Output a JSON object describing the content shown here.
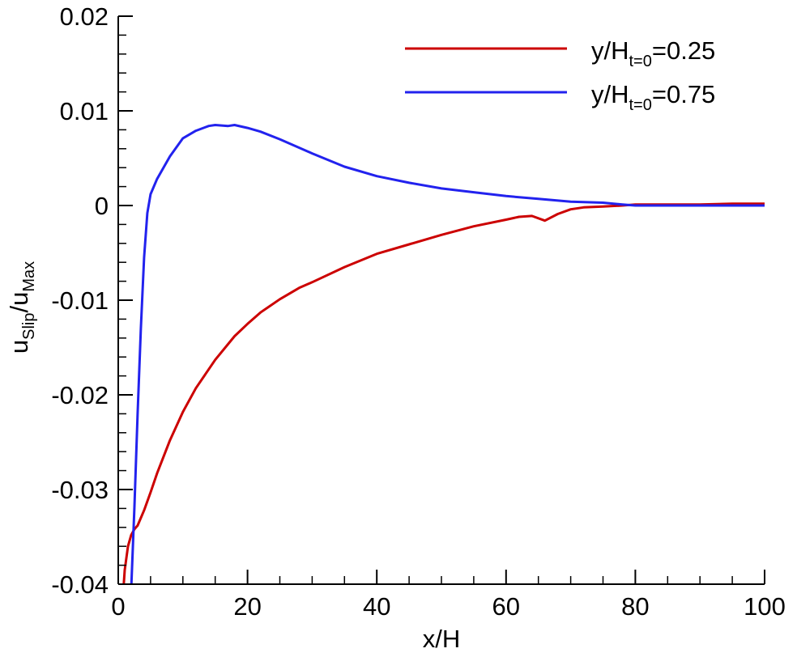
{
  "chart_data": {
    "type": "line",
    "title": "",
    "xlabel": "x/H",
    "ylabel": {
      "main1": "u",
      "sub1": "Slip",
      "main2": "/u",
      "sub2": "Max"
    },
    "xlim": [
      0,
      100
    ],
    "ylim": [
      -0.04,
      0.02
    ],
    "x_ticks": [
      0,
      20,
      40,
      60,
      80,
      100
    ],
    "x_tick_labels": [
      "0",
      "20",
      "40",
      "60",
      "80",
      "100"
    ],
    "y_ticks": [
      -0.04,
      -0.03,
      -0.02,
      -0.01,
      0,
      0.01,
      0.02
    ],
    "y_tick_labels": [
      "-0.04",
      "-0.03",
      "-0.02",
      "-0.01",
      "0",
      "0.01",
      "0.02"
    ],
    "grid": false,
    "legend_position": "top-right",
    "series": [
      {
        "name": "y/H t=0 =0.25",
        "legend": {
          "pre": "y/H",
          "sub": "t=0",
          "post": "=0.25"
        },
        "color": "#cc0000",
        "x": [
          0.8,
          1,
          1.5,
          2,
          2.5,
          3,
          4,
          5,
          6,
          8,
          10,
          12,
          15,
          18,
          20,
          22,
          25,
          28,
          30,
          35,
          40,
          45,
          50,
          55,
          60,
          62,
          64,
          66,
          68,
          70,
          72,
          75,
          78,
          80,
          85,
          90,
          95,
          100
        ],
        "y": [
          -0.0405,
          -0.0385,
          -0.036,
          -0.0348,
          -0.0342,
          -0.0338,
          -0.0322,
          -0.0303,
          -0.0283,
          -0.0248,
          -0.0218,
          -0.0193,
          -0.0163,
          -0.0138,
          -0.0125,
          -0.0113,
          -0.0099,
          -0.0087,
          -0.0081,
          -0.0065,
          -0.0051,
          -0.0041,
          -0.0031,
          -0.0022,
          -0.0015,
          -0.0012,
          -0.0011,
          -0.0016,
          -0.0009,
          -0.0004,
          -0.0002,
          -0.0001,
          0.0,
          0.0001,
          0.0001,
          0.0001,
          0.0002,
          0.0002
        ]
      },
      {
        "name": "y/H t=0 =0.75",
        "legend": {
          "pre": "y/H",
          "sub": "t=0",
          "post": "=0.75"
        },
        "color": "#2222ee",
        "x": [
          2.0,
          2.5,
          3,
          3.5,
          4,
          4.5,
          5,
          6,
          8,
          10,
          12,
          14,
          15,
          17,
          18,
          20,
          22,
          25,
          30,
          35,
          40,
          45,
          50,
          55,
          60,
          65,
          70,
          75,
          78,
          80,
          85,
          90,
          95,
          100
        ],
        "y": [
          -0.0405,
          -0.032,
          -0.022,
          -0.013,
          -0.0055,
          -0.0008,
          0.0012,
          0.0028,
          0.0052,
          0.0071,
          0.0079,
          0.0084,
          0.0085,
          0.0084,
          0.0085,
          0.0082,
          0.0078,
          0.007,
          0.0055,
          0.0041,
          0.0031,
          0.0024,
          0.0018,
          0.0014,
          0.001,
          0.0007,
          0.0004,
          0.0003,
          0.0001,
          0.0,
          0.0,
          0.0,
          0.0,
          0.0
        ]
      }
    ]
  }
}
